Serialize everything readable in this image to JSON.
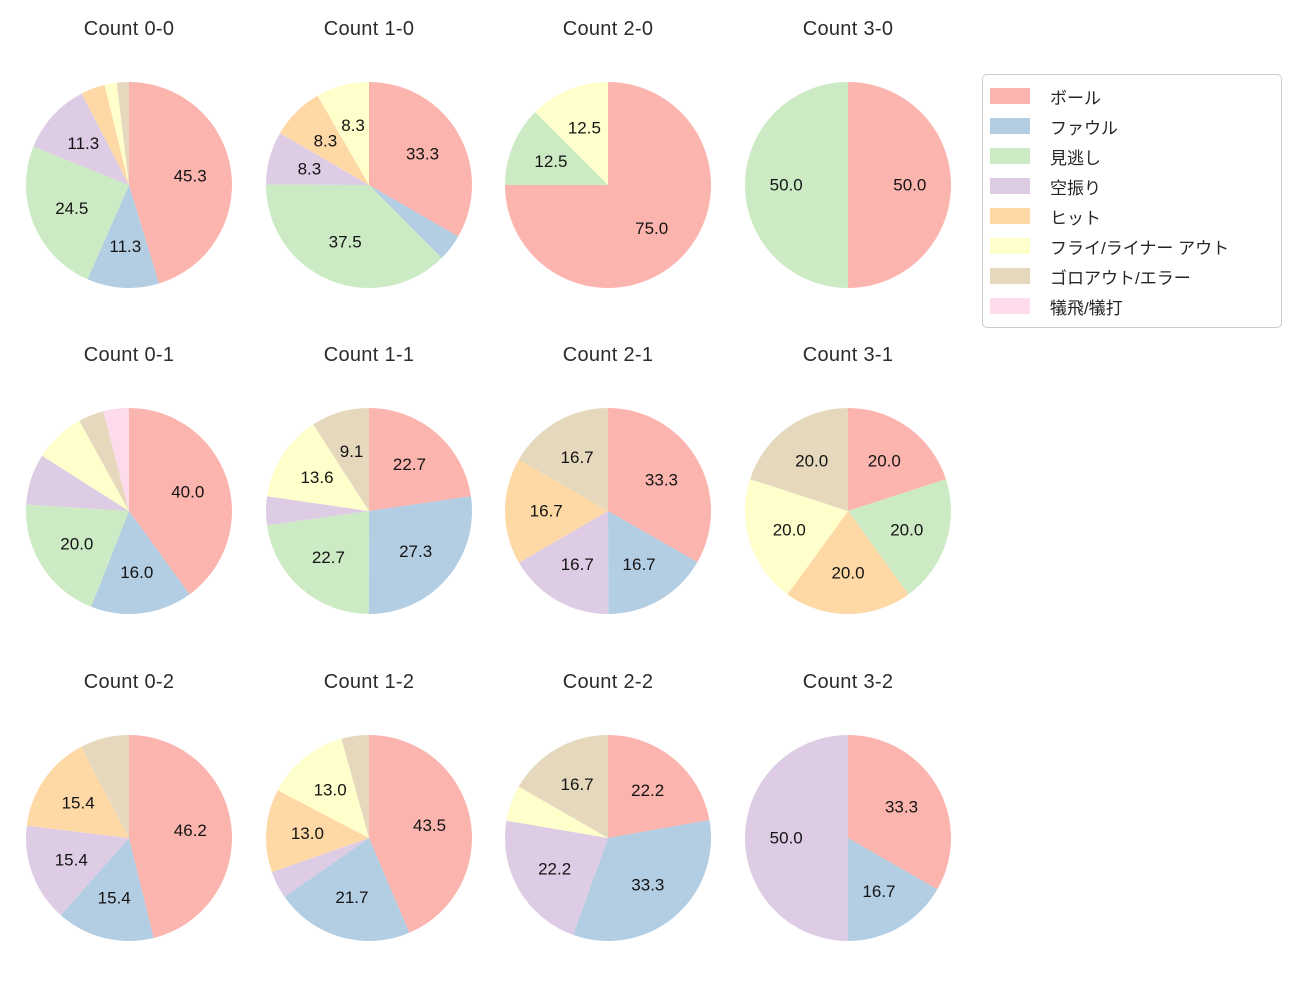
{
  "figure": {
    "background_color": "#ffffff",
    "title_color": "#2b2b2b",
    "pct_label_color": "#141414"
  },
  "legend": {
    "border_color": "#cccccc",
    "items": [
      {
        "key": "ball",
        "label": "ボール",
        "color": "#fbb4ae"
      },
      {
        "key": "foul",
        "label": "ファウル",
        "color": "#b3cde3"
      },
      {
        "key": "called_strike",
        "label": "見逃し",
        "color": "#ccebc5"
      },
      {
        "key": "swinging_strike",
        "label": "空振り",
        "color": "#decbe4"
      },
      {
        "key": "hit",
        "label": "ヒット",
        "color": "#fed9a6"
      },
      {
        "key": "fly_liner_out",
        "label": "フライ/ライナー アウト",
        "color": "#ffffcc"
      },
      {
        "key": "ground_out_error",
        "label": "ゴロアウト/エラー",
        "color": "#e5d8bd"
      },
      {
        "key": "sac_fly_bunt",
        "label": "犠飛/犠打",
        "color": "#fddaec"
      }
    ]
  },
  "chart_data": {
    "type": "pie",
    "layout": {
      "rows": 3,
      "cols": 4,
      "legend_position": "upper-right"
    },
    "start_angle": "top",
    "direction": "clockwise",
    "autopct_format": "%.1f",
    "pct_label_distance": 0.6,
    "palette": {
      "ball": "#fbb4ae",
      "foul": "#b3cde3",
      "called_strike": "#ccebc5",
      "swinging_strike": "#decbe4",
      "hit": "#fed9a6",
      "fly_liner_out": "#ffffcc",
      "ground_out_error": "#e5d8bd",
      "sac_fly_bunt": "#fddaec"
    },
    "charts": [
      {
        "title": "Count 0-0",
        "slices": [
          {
            "category": "ball",
            "pct": 45.3,
            "label": "45.3"
          },
          {
            "category": "foul",
            "pct": 11.3,
            "label": "11.3"
          },
          {
            "category": "called_strike",
            "pct": 24.5,
            "label": "24.5"
          },
          {
            "category": "swinging_strike",
            "pct": 11.3,
            "label": "11.3"
          },
          {
            "category": "hit",
            "pct": 3.8,
            "label": null
          },
          {
            "category": "fly_liner_out",
            "pct": 1.9,
            "label": null
          },
          {
            "category": "ground_out_error",
            "pct": 1.9,
            "label": null
          }
        ]
      },
      {
        "title": "Count 1-0",
        "slices": [
          {
            "category": "ball",
            "pct": 33.3,
            "label": "33.3"
          },
          {
            "category": "foul",
            "pct": 4.2,
            "label": null
          },
          {
            "category": "called_strike",
            "pct": 37.5,
            "label": "37.5"
          },
          {
            "category": "swinging_strike",
            "pct": 8.3,
            "label": "8.3"
          },
          {
            "category": "hit",
            "pct": 8.3,
            "label": "8.3"
          },
          {
            "category": "fly_liner_out",
            "pct": 8.3,
            "label": "8.3"
          }
        ]
      },
      {
        "title": "Count 2-0",
        "slices": [
          {
            "category": "ball",
            "pct": 75.0,
            "label": "75.0"
          },
          {
            "category": "called_strike",
            "pct": 12.5,
            "label": "12.5"
          },
          {
            "category": "fly_liner_out",
            "pct": 12.5,
            "label": "12.5"
          }
        ]
      },
      {
        "title": "Count 3-0",
        "slices": [
          {
            "category": "ball",
            "pct": 50.0,
            "label": "50.0"
          },
          {
            "category": "called_strike",
            "pct": 50.0,
            "label": "50.0"
          }
        ]
      },
      {
        "title": "Count 0-1",
        "slices": [
          {
            "category": "ball",
            "pct": 40.0,
            "label": "40.0"
          },
          {
            "category": "foul",
            "pct": 16.0,
            "label": "16.0"
          },
          {
            "category": "called_strike",
            "pct": 20.0,
            "label": "20.0"
          },
          {
            "category": "swinging_strike",
            "pct": 8.0,
            "label": null
          },
          {
            "category": "fly_liner_out",
            "pct": 8.0,
            "label": null
          },
          {
            "category": "ground_out_error",
            "pct": 4.0,
            "label": null
          },
          {
            "category": "sac_fly_bunt",
            "pct": 4.0,
            "label": null
          }
        ]
      },
      {
        "title": "Count 1-1",
        "slices": [
          {
            "category": "ball",
            "pct": 22.7,
            "label": "22.7"
          },
          {
            "category": "foul",
            "pct": 27.3,
            "label": "27.3"
          },
          {
            "category": "called_strike",
            "pct": 22.7,
            "label": "22.7"
          },
          {
            "category": "swinging_strike",
            "pct": 4.5,
            "label": null
          },
          {
            "category": "fly_liner_out",
            "pct": 13.6,
            "label": "13.6"
          },
          {
            "category": "ground_out_error",
            "pct": 9.1,
            "label": "9.1"
          }
        ]
      },
      {
        "title": "Count 2-1",
        "slices": [
          {
            "category": "ball",
            "pct": 33.3,
            "label": "33.3"
          },
          {
            "category": "foul",
            "pct": 16.7,
            "label": "16.7"
          },
          {
            "category": "swinging_strike",
            "pct": 16.7,
            "label": "16.7"
          },
          {
            "category": "hit",
            "pct": 16.7,
            "label": "16.7"
          },
          {
            "category": "ground_out_error",
            "pct": 16.7,
            "label": "16.7"
          }
        ]
      },
      {
        "title": "Count 3-1",
        "slices": [
          {
            "category": "ball",
            "pct": 20.0,
            "label": "20.0"
          },
          {
            "category": "called_strike",
            "pct": 20.0,
            "label": "20.0"
          },
          {
            "category": "hit",
            "pct": 20.0,
            "label": "20.0"
          },
          {
            "category": "fly_liner_out",
            "pct": 20.0,
            "label": "20.0"
          },
          {
            "category": "ground_out_error",
            "pct": 20.0,
            "label": "20.0"
          }
        ]
      },
      {
        "title": "Count 0-2",
        "slices": [
          {
            "category": "ball",
            "pct": 46.2,
            "label": "46.2"
          },
          {
            "category": "foul",
            "pct": 15.4,
            "label": "15.4"
          },
          {
            "category": "swinging_strike",
            "pct": 15.4,
            "label": "15.4"
          },
          {
            "category": "hit",
            "pct": 15.4,
            "label": "15.4"
          },
          {
            "category": "ground_out_error",
            "pct": 7.7,
            "label": null
          }
        ]
      },
      {
        "title": "Count 1-2",
        "slices": [
          {
            "category": "ball",
            "pct": 43.5,
            "label": "43.5"
          },
          {
            "category": "foul",
            "pct": 21.7,
            "label": "21.7"
          },
          {
            "category": "swinging_strike",
            "pct": 4.3,
            "label": null
          },
          {
            "category": "hit",
            "pct": 13.0,
            "label": "13.0"
          },
          {
            "category": "fly_liner_out",
            "pct": 13.0,
            "label": "13.0"
          },
          {
            "category": "ground_out_error",
            "pct": 4.3,
            "label": null
          }
        ]
      },
      {
        "title": "Count 2-2",
        "slices": [
          {
            "category": "ball",
            "pct": 22.2,
            "label": "22.2"
          },
          {
            "category": "foul",
            "pct": 33.3,
            "label": "33.3"
          },
          {
            "category": "swinging_strike",
            "pct": 22.2,
            "label": "22.2"
          },
          {
            "category": "fly_liner_out",
            "pct": 5.6,
            "label": null
          },
          {
            "category": "ground_out_error",
            "pct": 16.7,
            "label": "16.7"
          }
        ]
      },
      {
        "title": "Count 3-2",
        "slices": [
          {
            "category": "ball",
            "pct": 33.3,
            "label": "33.3"
          },
          {
            "category": "foul",
            "pct": 16.7,
            "label": "16.7"
          },
          {
            "category": "swinging_strike",
            "pct": 50.0,
            "label": "50.0"
          }
        ]
      }
    ]
  }
}
